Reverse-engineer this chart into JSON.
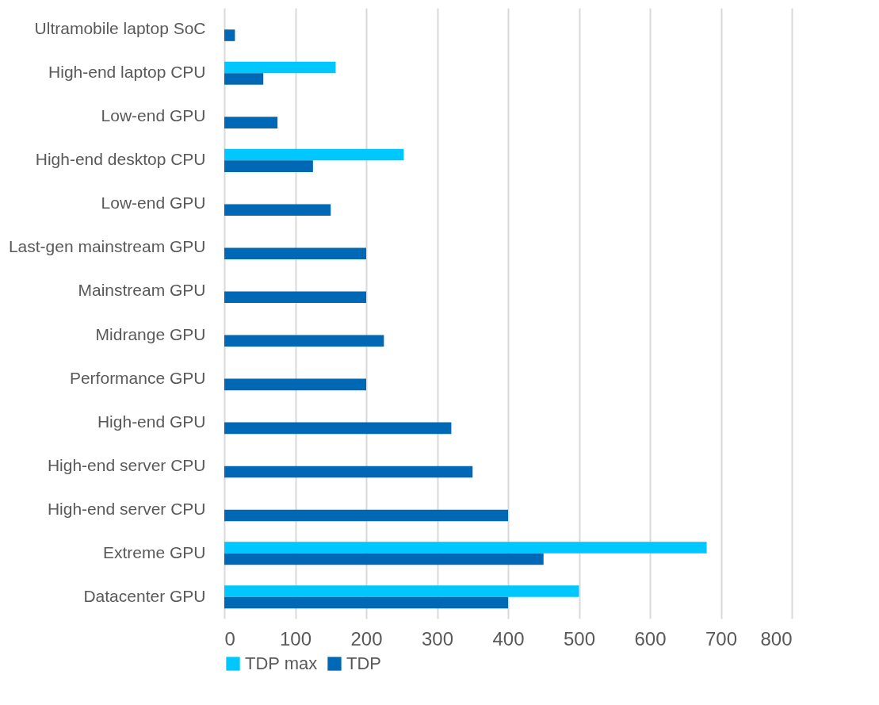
{
  "chart_data": {
    "type": "bar",
    "orientation": "horizontal",
    "categories": [
      "Ultramobile laptop SoC",
      "High-end laptop CPU",
      "Low-end GPU",
      "High-end desktop CPU",
      "Low-end GPU",
      "Last-gen mainstream GPU",
      "Mainstream GPU",
      "Midrange GPU",
      "Performance GPU",
      "High-end GPU",
      "High-end server CPU",
      "High-end server CPU",
      "Extreme GPU",
      "Datacenter GPU"
    ],
    "series": [
      {
        "name": "TDP max",
        "color": "#00c7fd",
        "values": [
          null,
          157,
          null,
          253,
          null,
          null,
          null,
          null,
          null,
          null,
          null,
          null,
          680,
          500
        ]
      },
      {
        "name": "TDP",
        "color": "#0068b5",
        "values": [
          15,
          55,
          75,
          125,
          150,
          200,
          200,
          225,
          200,
          320,
          350,
          400,
          450,
          400
        ]
      }
    ],
    "xlim": [
      0,
      800
    ],
    "xticks": [
      0,
      100,
      200,
      300,
      400,
      500,
      600,
      700,
      800
    ],
    "grid": "x",
    "legend": "bottom"
  }
}
